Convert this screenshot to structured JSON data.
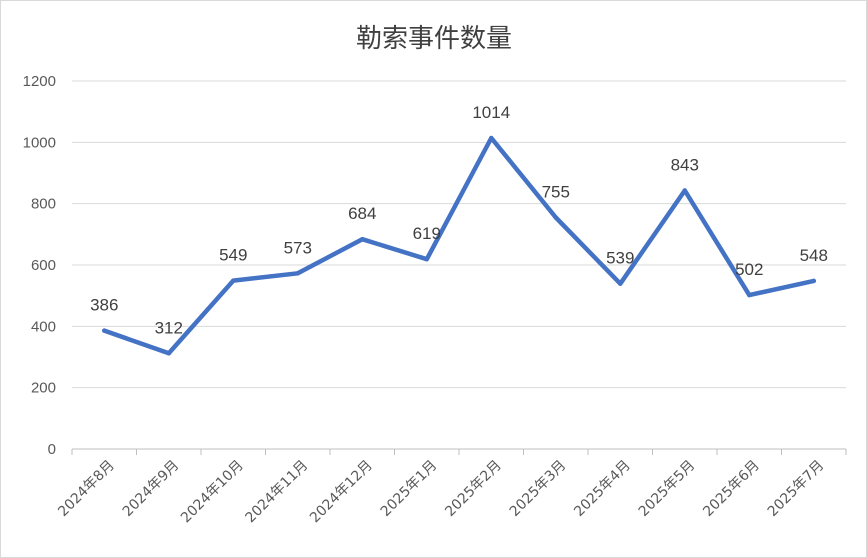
{
  "chart_data": {
    "type": "line",
    "title": "勒索事件数量",
    "categories": [
      "2024年8月",
      "2024年9月",
      "2024年10月",
      "2024年11月",
      "2024年12月",
      "2025年1月",
      "2025年2月",
      "2025年3月",
      "2025年4月",
      "2025年5月",
      "2025年6月",
      "2025年7月"
    ],
    "series": [
      {
        "values": [
          386,
          312,
          549,
          573,
          684,
          619,
          1014,
          755,
          539,
          843,
          502,
          548
        ],
        "color": "#4472c4"
      }
    ],
    "ylim": [
      0,
      1200
    ],
    "yticks": [
      0,
      200,
      400,
      600,
      800,
      1000,
      1200
    ],
    "grid": true,
    "legend": "none"
  }
}
